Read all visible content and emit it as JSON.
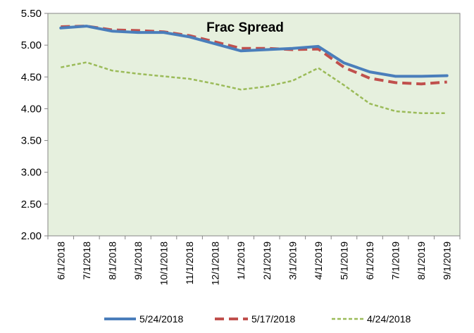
{
  "chart_data": {
    "type": "line",
    "title": "Frac Spread",
    "xlabel": "",
    "ylabel": "",
    "ylim": [
      2.0,
      5.5
    ],
    "yticks": [
      "2.00",
      "2.50",
      "3.00",
      "3.50",
      "4.00",
      "4.50",
      "5.00",
      "5.50"
    ],
    "ytick_values": [
      2.0,
      2.5,
      3.0,
      3.5,
      4.0,
      4.5,
      5.0,
      5.5
    ],
    "grid": false,
    "legend_position": "bottom",
    "categories": [
      "6/1/2018",
      "7/1/2018",
      "8/1/2018",
      "9/1/2018",
      "10/1/2018",
      "11/1/2018",
      "12/1/2018",
      "1/1/2019",
      "2/1/2019",
      "3/1/2019",
      "4/1/2019",
      "5/1/2019",
      "6/1/2019",
      "7/1/2019",
      "8/1/2019",
      "9/1/2019"
    ],
    "series": [
      {
        "name": "5/24/2018",
        "style": "solid",
        "color": "#4a7ebb",
        "values": [
          5.27,
          5.3,
          5.22,
          5.2,
          5.2,
          5.13,
          5.02,
          4.91,
          4.93,
          4.95,
          4.98,
          4.72,
          4.58,
          4.51,
          4.51,
          4.52
        ]
      },
      {
        "name": "5/17/2018",
        "style": "dashed",
        "color": "#c0504d",
        "values": [
          5.29,
          5.3,
          5.24,
          5.23,
          5.21,
          5.15,
          5.05,
          4.95,
          4.95,
          4.93,
          4.94,
          4.65,
          4.48,
          4.41,
          4.39,
          4.42
        ]
      },
      {
        "name": "4/24/2018",
        "style": "dotted",
        "color": "#9bbb59",
        "values": [
          4.65,
          4.73,
          4.6,
          4.55,
          4.51,
          4.47,
          4.39,
          4.3,
          4.35,
          4.44,
          4.64,
          4.37,
          4.08,
          3.96,
          3.93,
          3.93
        ]
      }
    ]
  },
  "colors": {
    "plot_background": "#e6f0de",
    "axis": "#868686",
    "text": "#000000"
  }
}
